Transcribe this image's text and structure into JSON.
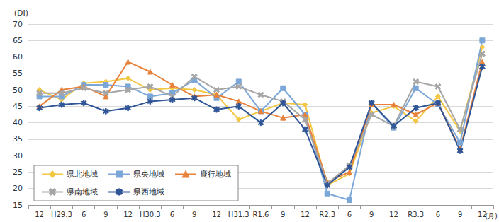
{
  "chart_data": {
    "type": "line",
    "x_label": "(月)",
    "y_label": "(DI)",
    "categories": [
      "12",
      "H29.3",
      "6",
      "9",
      "12",
      "H30.3",
      "6",
      "9",
      "12",
      "H31.3",
      "R1.6",
      "9",
      "12",
      "R2.3",
      "6",
      "9",
      "12",
      "R3.3",
      "6",
      "9",
      "12"
    ],
    "series": [
      {
        "name": "県北地域",
        "color": "#f2c744",
        "marker": "diamond",
        "values": [
          50,
          47,
          52,
          52.5,
          53.5,
          50,
          50.5,
          50,
          48.5,
          41,
          43.5,
          46,
          45.5,
          21,
          24.5,
          43,
          45,
          40.5,
          48,
          37.5,
          63
        ]
      },
      {
        "name": "県央地域",
        "color": "#7ba7d8",
        "marker": "square",
        "values": [
          48,
          48,
          51.5,
          51.5,
          51,
          48,
          49,
          53,
          47.5,
          52.5,
          43.5,
          50.5,
          42.5,
          18.5,
          16.5,
          46,
          38.5,
          50.5,
          45.5,
          34,
          65
        ]
      },
      {
        "name": "鹿行地域",
        "color": "#e8823b",
        "marker": "triangle",
        "values": [
          45,
          50,
          51,
          48,
          58.5,
          55.5,
          51.5,
          48,
          48.5,
          46.5,
          43.5,
          41.5,
          42.5,
          22,
          25,
          45.5,
          45.5,
          42.5,
          46,
          32,
          58.5
        ]
      },
      {
        "name": "県南地域",
        "color": "#a6a6a6",
        "marker": "x",
        "values": [
          49,
          49,
          50.5,
          49,
          50,
          51,
          48,
          54,
          50,
          51,
          48.5,
          46.5,
          41,
          21.5,
          27,
          42.5,
          39,
          52.5,
          51,
          38,
          61
        ]
      },
      {
        "name": "県西地域",
        "color": "#2f5597",
        "marker": "asterisk",
        "values": [
          44.5,
          45.5,
          46,
          43.5,
          44.5,
          46.5,
          47,
          47.5,
          44,
          45,
          40,
          46,
          38,
          21,
          26.5,
          46,
          39,
          44.5,
          46,
          31.5,
          57
        ]
      }
    ],
    "ylim": [
      15,
      70
    ],
    "yticks": [
      15,
      20,
      25,
      30,
      35,
      40,
      45,
      50,
      55,
      60,
      65,
      70
    ],
    "grid": true,
    "legend": "lower left"
  }
}
